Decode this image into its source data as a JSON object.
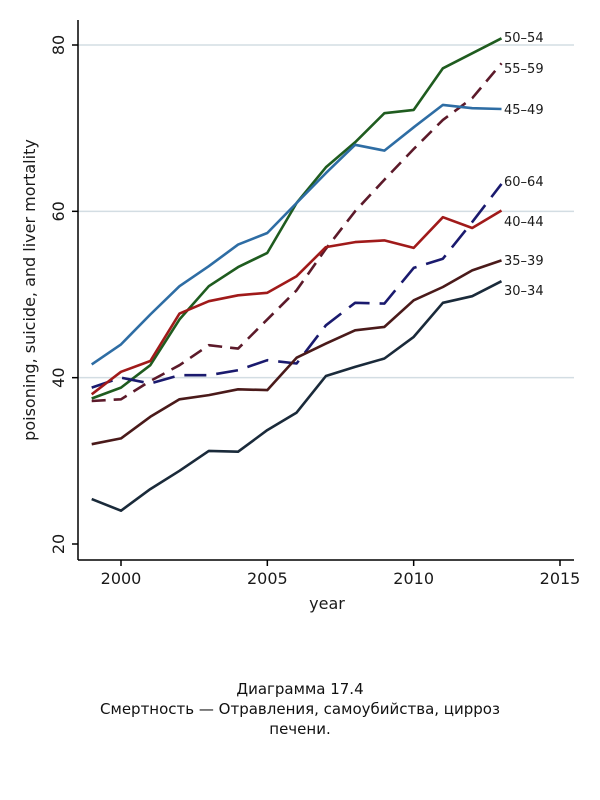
{
  "chart_data": {
    "type": "line",
    "xlabel": "year",
    "ylabel": "poisoning, suicide, and liver mortality",
    "xlim": [
      1999,
      2015
    ],
    "ylim": [
      20,
      82
    ],
    "xticks": [
      2000,
      2005,
      2010,
      2015
    ],
    "yticks": [
      20,
      40,
      60,
      80
    ],
    "grid": "horizontal",
    "x": [
      1999,
      2000,
      2001,
      2002,
      2003,
      2004,
      2005,
      2006,
      2007,
      2008,
      2009,
      2010,
      2011,
      2012,
      2013
    ],
    "series": [
      {
        "name": "50–54",
        "color": "#1f5c1f",
        "dash": "solid",
        "values": [
          37.5,
          38.8,
          41.5,
          47.0,
          51.0,
          53.3,
          55.0,
          61.0,
          65.3,
          68.3,
          71.8,
          72.2,
          77.2,
          79.0,
          80.8
        ]
      },
      {
        "name": "55–59",
        "color": "#5c1a2a",
        "dash": "dashed",
        "values": [
          37.2,
          37.4,
          39.6,
          41.5,
          43.9,
          43.5,
          47.0,
          50.5,
          55.5,
          60.0,
          63.8,
          67.5,
          71.0,
          73.6,
          77.8
        ]
      },
      {
        "name": "45–49",
        "color": "#2e6da4",
        "dash": "solid",
        "values": [
          41.6,
          44.0,
          47.6,
          51.0,
          53.4,
          56.0,
          57.4,
          61.0,
          64.6,
          68.0,
          67.3,
          70.1,
          72.8,
          72.4,
          72.3
        ]
      },
      {
        "name": "60–64",
        "color": "#1a1a6e",
        "dash": "longdash",
        "values": [
          38.8,
          40.0,
          39.3,
          40.3,
          40.3,
          40.9,
          42.1,
          41.7,
          46.3,
          49.0,
          48.9,
          53.2,
          54.3,
          58.7,
          63.3
        ]
      },
      {
        "name": "40–44",
        "color": "#a01a1a",
        "dash": "solid",
        "values": [
          38.0,
          40.7,
          42.0,
          47.7,
          49.2,
          49.9,
          50.2,
          52.2,
          55.7,
          56.3,
          56.5,
          55.6,
          59.3,
          58.0,
          60.1
        ]
      },
      {
        "name": "35–39",
        "color": "#4a1a1a",
        "dash": "solid",
        "values": [
          32.0,
          32.7,
          35.3,
          37.4,
          37.9,
          38.6,
          38.5,
          42.4,
          44.1,
          45.7,
          46.1,
          49.3,
          50.9,
          52.9,
          54.1
        ]
      },
      {
        "name": "30–34",
        "color": "#1a2a3a",
        "dash": "solid",
        "values": [
          25.4,
          24.0,
          26.6,
          28.8,
          31.2,
          31.1,
          33.7,
          35.8,
          40.2,
          41.3,
          42.3,
          44.9,
          49.0,
          49.8,
          51.6
        ]
      }
    ]
  },
  "caption": {
    "title": "Диаграмма 17.4",
    "line1": "Смертность — Отравления, самоубийства, цирроз",
    "line2": "печени."
  }
}
